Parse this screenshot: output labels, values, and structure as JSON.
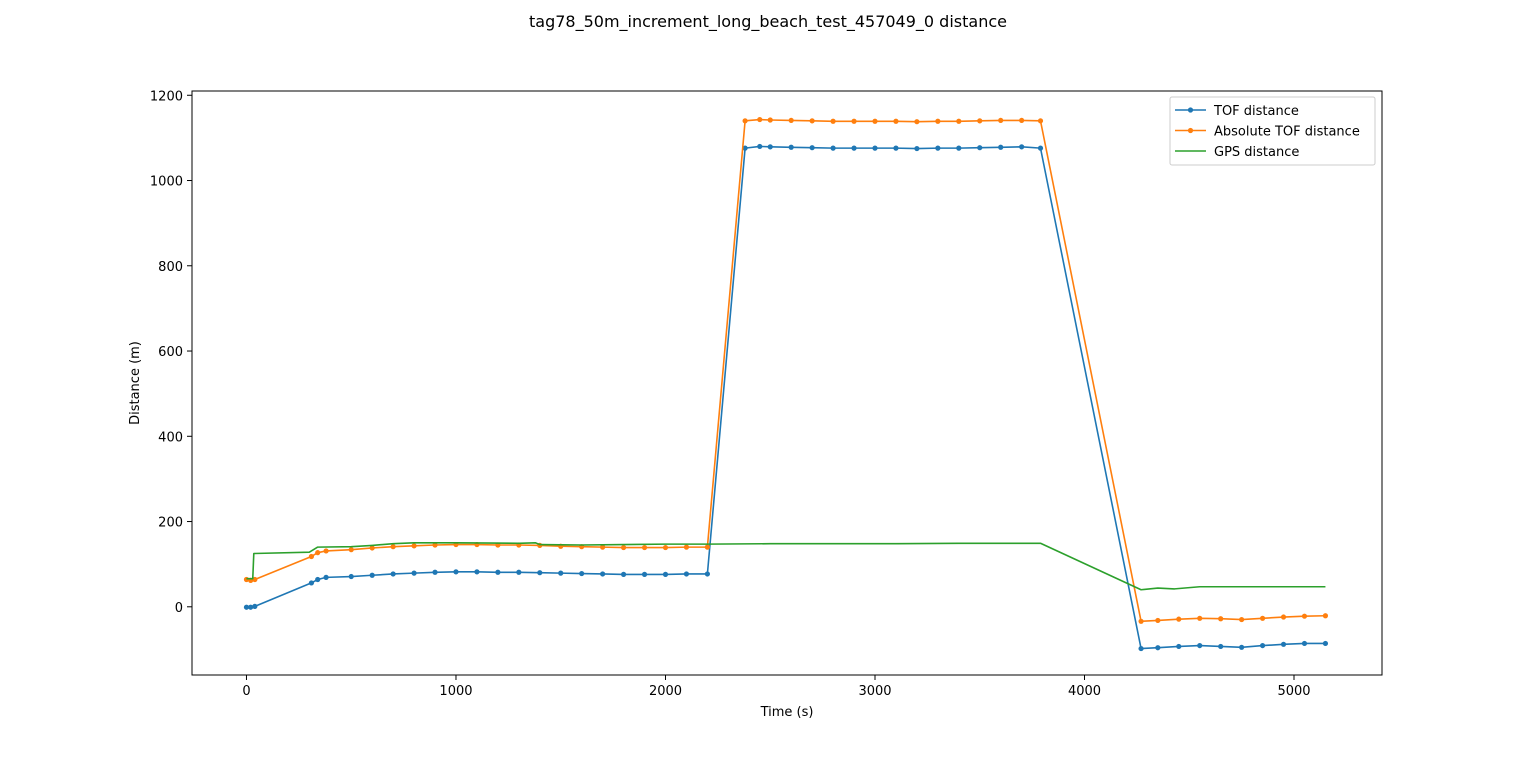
{
  "chart_data": {
    "type": "line",
    "title": "tag78_50m_increment_long_beach_test_457049_0 distance",
    "xlabel": "Time (s)",
    "ylabel": "Distance (m)",
    "xlim": [
      -260,
      5420
    ],
    "ylim": [
      -160,
      1210
    ],
    "xticks": [
      0,
      1000,
      2000,
      3000,
      4000,
      5000
    ],
    "yticks": [
      0,
      200,
      400,
      600,
      800,
      1000,
      1200
    ],
    "grid": false,
    "legend_position": "top-right",
    "series": [
      {
        "name": "TOF distance",
        "color": "#1f77b4",
        "marker": true,
        "points": [
          [
            0,
            -1
          ],
          [
            20,
            -1
          ],
          [
            40,
            1
          ],
          [
            310,
            56
          ],
          [
            340,
            64
          ],
          [
            380,
            69
          ],
          [
            500,
            71
          ],
          [
            600,
            74
          ],
          [
            700,
            77
          ],
          [
            800,
            79
          ],
          [
            900,
            81
          ],
          [
            1000,
            82
          ],
          [
            1100,
            82
          ],
          [
            1200,
            81
          ],
          [
            1300,
            81
          ],
          [
            1400,
            80
          ],
          [
            1500,
            79
          ],
          [
            1600,
            78
          ],
          [
            1700,
            77
          ],
          [
            1800,
            76
          ],
          [
            1900,
            76
          ],
          [
            2000,
            76
          ],
          [
            2100,
            77
          ],
          [
            2200,
            77
          ],
          [
            2380,
            1076
          ],
          [
            2450,
            1080
          ],
          [
            2500,
            1079
          ],
          [
            2600,
            1078
          ],
          [
            2700,
            1077
          ],
          [
            2800,
            1076
          ],
          [
            2900,
            1076
          ],
          [
            3000,
            1076
          ],
          [
            3100,
            1076
          ],
          [
            3200,
            1075
          ],
          [
            3300,
            1076
          ],
          [
            3400,
            1076
          ],
          [
            3500,
            1077
          ],
          [
            3600,
            1078
          ],
          [
            3700,
            1079
          ],
          [
            3790,
            1076
          ],
          [
            4270,
            -98
          ],
          [
            4350,
            -96
          ],
          [
            4450,
            -93
          ],
          [
            4550,
            -91
          ],
          [
            4650,
            -93
          ],
          [
            4750,
            -95
          ],
          [
            4850,
            -91
          ],
          [
            4950,
            -88
          ],
          [
            5050,
            -86
          ],
          [
            5150,
            -86
          ]
        ]
      },
      {
        "name": "Absolute TOF distance",
        "color": "#ff7f0e",
        "marker": true,
        "points": [
          [
            0,
            64
          ],
          [
            20,
            62
          ],
          [
            40,
            64
          ],
          [
            310,
            118
          ],
          [
            340,
            127
          ],
          [
            380,
            131
          ],
          [
            500,
            134
          ],
          [
            600,
            138
          ],
          [
            700,
            141
          ],
          [
            800,
            143
          ],
          [
            900,
            145
          ],
          [
            1000,
            146
          ],
          [
            1100,
            146
          ],
          [
            1200,
            145
          ],
          [
            1300,
            145
          ],
          [
            1400,
            144
          ],
          [
            1500,
            142
          ],
          [
            1600,
            141
          ],
          [
            1700,
            140
          ],
          [
            1800,
            139
          ],
          [
            1900,
            139
          ],
          [
            2000,
            139
          ],
          [
            2100,
            140
          ],
          [
            2200,
            140
          ],
          [
            2380,
            1140
          ],
          [
            2450,
            1143
          ],
          [
            2500,
            1142
          ],
          [
            2600,
            1141
          ],
          [
            2700,
            1140
          ],
          [
            2800,
            1139
          ],
          [
            2900,
            1139
          ],
          [
            3000,
            1139
          ],
          [
            3100,
            1139
          ],
          [
            3200,
            1138
          ],
          [
            3300,
            1139
          ],
          [
            3400,
            1139
          ],
          [
            3500,
            1140
          ],
          [
            3600,
            1141
          ],
          [
            3700,
            1141
          ],
          [
            3790,
            1140
          ],
          [
            4270,
            -34
          ],
          [
            4350,
            -32
          ],
          [
            4450,
            -29
          ],
          [
            4550,
            -27
          ],
          [
            4650,
            -28
          ],
          [
            4750,
            -30
          ],
          [
            4850,
            -27
          ],
          [
            4950,
            -24
          ],
          [
            5050,
            -22
          ],
          [
            5150,
            -21
          ]
        ]
      },
      {
        "name": "GPS distance",
        "color": "#2ca02c",
        "marker": false,
        "points": [
          [
            0,
            66
          ],
          [
            30,
            66
          ],
          [
            35,
            125
          ],
          [
            300,
            128
          ],
          [
            340,
            140
          ],
          [
            500,
            141
          ],
          [
            600,
            144
          ],
          [
            700,
            148
          ],
          [
            800,
            150
          ],
          [
            1000,
            150
          ],
          [
            1300,
            149
          ],
          [
            1380,
            150
          ],
          [
            1400,
            146
          ],
          [
            1600,
            145
          ],
          [
            1800,
            146
          ],
          [
            2000,
            147
          ],
          [
            2200,
            147
          ],
          [
            2500,
            148
          ],
          [
            2800,
            148
          ],
          [
            3100,
            148
          ],
          [
            3400,
            149
          ],
          [
            3600,
            149
          ],
          [
            3790,
            149
          ],
          [
            4270,
            40
          ],
          [
            4350,
            44
          ],
          [
            4430,
            42
          ],
          [
            4550,
            47
          ],
          [
            4800,
            47
          ],
          [
            5150,
            47
          ]
        ]
      }
    ]
  }
}
